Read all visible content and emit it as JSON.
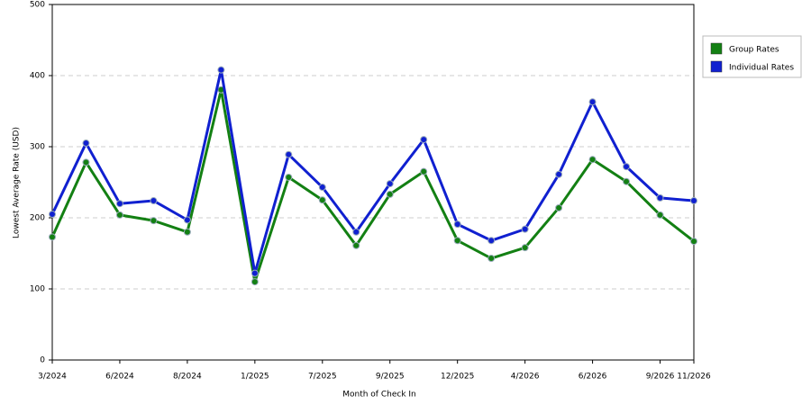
{
  "chart_data": {
    "type": "line",
    "x_label": "Month of Check In",
    "y_label": "Lowest Average Rate (USD)",
    "categories": [
      "3/2024",
      null,
      "6/2024",
      null,
      "8/2024",
      null,
      "1/2025",
      null,
      "7/2025",
      null,
      "9/2025",
      null,
      "12/2025",
      null,
      "4/2026",
      null,
      "6/2026",
      null,
      "9/2026",
      "11/2026"
    ],
    "series": [
      {
        "name": "Group Rates",
        "color": "#138013",
        "values": [
          173,
          278,
          204,
          196,
          180,
          380,
          110,
          257,
          225,
          161,
          233,
          265,
          168,
          143,
          158,
          214,
          282,
          251,
          204,
          167
        ]
      },
      {
        "name": "Individual Rates",
        "color": "#1020d0",
        "values": [
          205,
          305,
          220,
          224,
          197,
          408,
          122,
          289,
          243,
          180,
          248,
          310,
          191,
          168,
          184,
          261,
          363,
          272,
          228,
          224
        ]
      }
    ],
    "ylim": [
      0,
      500
    ],
    "yticks": [
      0,
      100,
      200,
      300,
      400,
      500
    ],
    "grid": true,
    "legend": "right"
  }
}
